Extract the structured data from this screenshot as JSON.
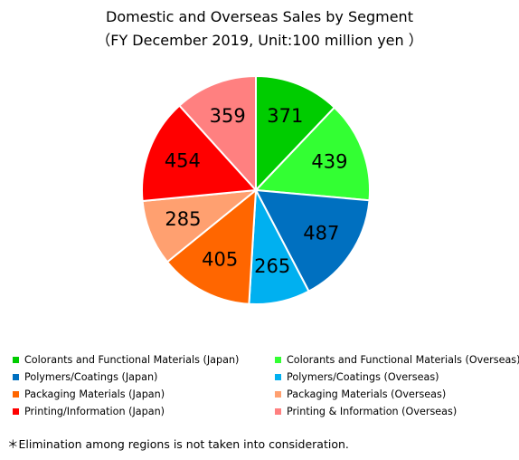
{
  "chart_data": {
    "type": "pie",
    "title": "Domestic and Overseas Sales by Segment",
    "subtitle": "（FY December 2019, Unit:100 million yen ）",
    "slices": [
      {
        "label": "Colorants and Functional Materials (Japan)",
        "value": 371,
        "color": "#00cc00"
      },
      {
        "label": "Colorants and Functional Materials (Overseas)",
        "value": 439,
        "color": "#33ff33"
      },
      {
        "label": "Polymers/Coatings (Japan)",
        "value": 487,
        "color": "#0070c0"
      },
      {
        "label": "Polymers/Coatings (Overseas)",
        "value": 265,
        "color": "#00b0f0"
      },
      {
        "label": "Packaging Materials (Japan)",
        "value": 405,
        "color": "#ff6600"
      },
      {
        "label": "Packaging Materials (Overseas)",
        "value": 285,
        "color": "#ffa070"
      },
      {
        "label": "Printing/Information (Japan)",
        "value": 454,
        "color": "#ff0000"
      },
      {
        "label": "Printing & Information (Overseas)",
        "value": 359,
        "color": "#ff8080"
      }
    ],
    "legend_placement": "bottom",
    "footnote": "＊Elimination among regions is not taken into consideration."
  }
}
